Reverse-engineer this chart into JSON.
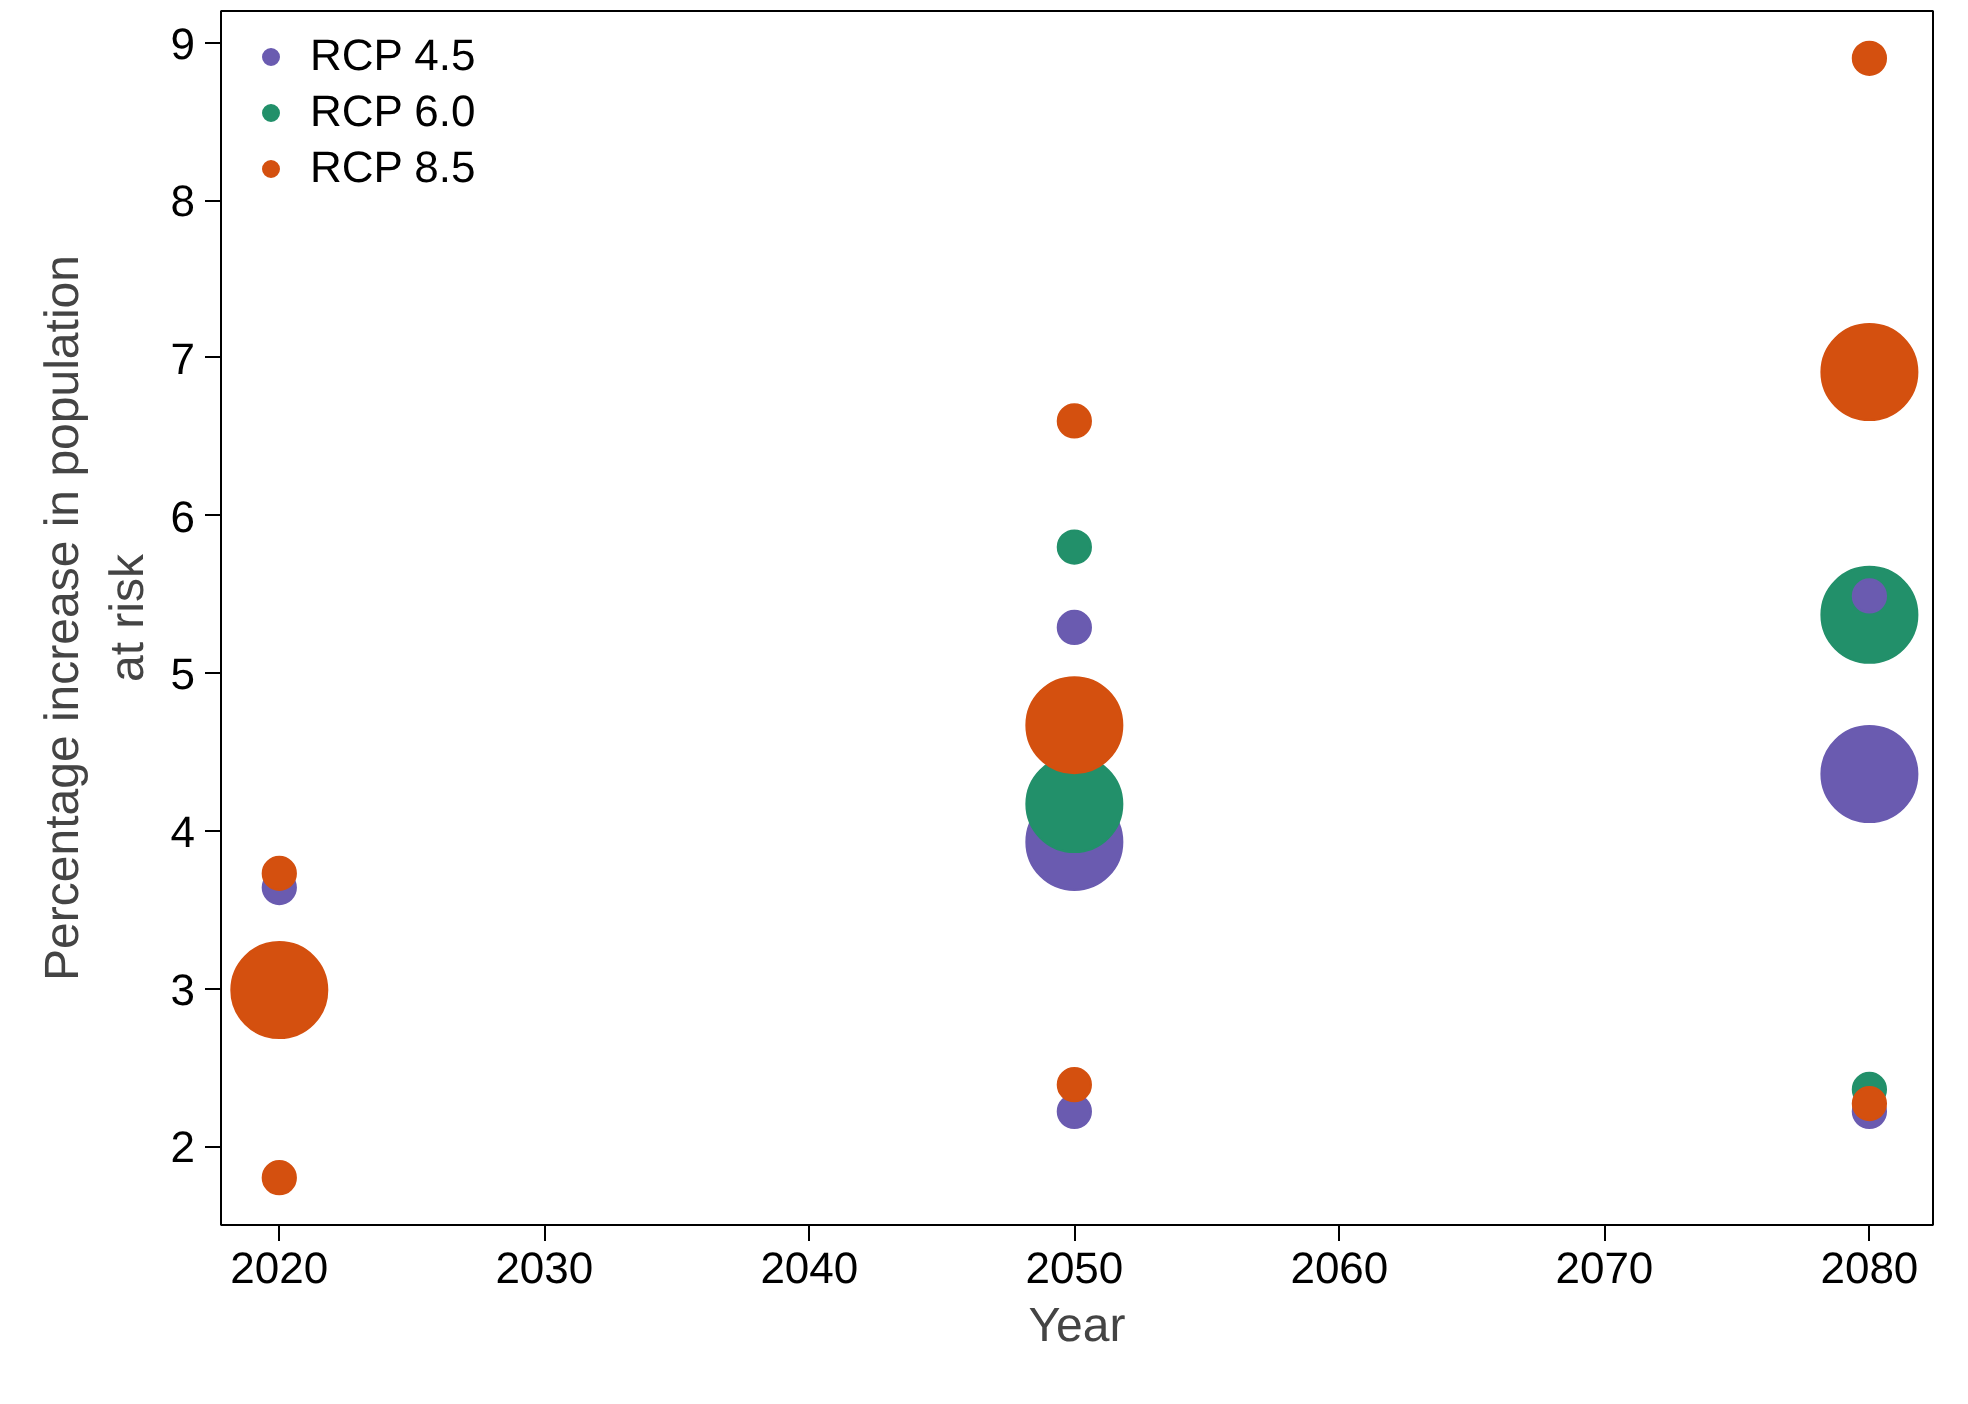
{
  "chart_data": {
    "type": "bubble",
    "xlabel": "Year",
    "ylabel": "Percentage increase in population\nat risk",
    "xlim": [
      2017.8,
      2082.4
    ],
    "ylim": [
      1.5,
      9.2
    ],
    "xticks": [
      2020,
      2030,
      2040,
      2050,
      2060,
      2070,
      2080
    ],
    "yticks": [
      2,
      3,
      4,
      5,
      6,
      7,
      8,
      9
    ],
    "grid": false,
    "legend": "top left",
    "series": [
      {
        "name": "RCP 4.5",
        "color": "#6a5bb0",
        "x": [
          2020,
          2050,
          2050,
          2050,
          2080,
          2080,
          2080
        ],
        "values": [
          3.64,
          5.29,
          3.93,
          2.22,
          5.49,
          4.36,
          2.22
        ],
        "sizes": [
          0.12,
          0.12,
          1,
          0.12,
          0.12,
          1,
          0.12
        ]
      },
      {
        "name": "RCP 6.0",
        "color": "#22906a",
        "x": [
          2050,
          2050,
          2080,
          2080
        ],
        "values": [
          5.8,
          4.17,
          5.37,
          2.36
        ],
        "sizes": [
          0.12,
          1,
          1,
          0.12
        ]
      },
      {
        "name": "RCP 8.5",
        "color": "#d4500f",
        "x": [
          2020,
          2020,
          2020,
          2050,
          2050,
          2050,
          2080,
          2080,
          2080
        ],
        "values": [
          3.73,
          2.99,
          1.8,
          6.6,
          4.67,
          2.39,
          8.9,
          6.91,
          2.27
        ],
        "sizes": [
          0.12,
          1,
          0.12,
          0.12,
          1,
          0.12,
          0.12,
          1,
          0.12
        ]
      }
    ]
  }
}
